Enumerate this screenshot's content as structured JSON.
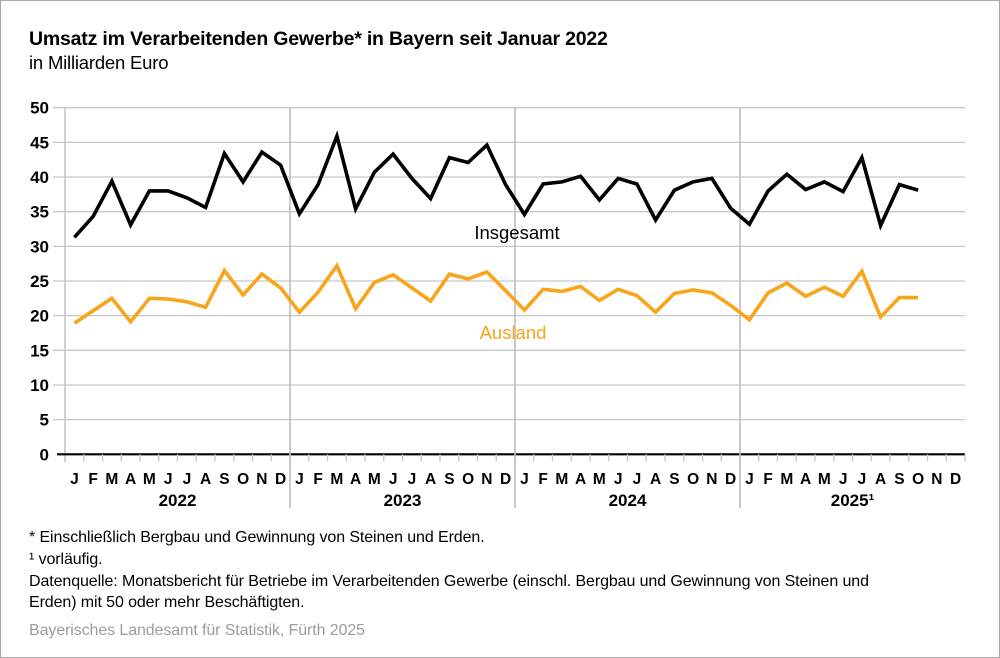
{
  "header": {
    "title": "Umsatz im Verarbeitenden Gewerbe* in Bayern seit Januar 2022",
    "subtitle": "in Milliarden Euro"
  },
  "chart_data": {
    "type": "line",
    "title": "Umsatz im Verarbeitenden Gewerbe in Bayern seit Januar 2022",
    "ylabel": "Milliarden Euro",
    "xlabel": "",
    "grid": true,
    "legend_position": "inline-labels",
    "y_range": [
      0,
      50
    ],
    "y_ticks": [
      0,
      5,
      10,
      15,
      20,
      25,
      30,
      35,
      40,
      45,
      50
    ],
    "x_month_labels": [
      "J",
      "F",
      "M",
      "A",
      "M",
      "J",
      "J",
      "A",
      "S",
      "O",
      "N",
      "D"
    ],
    "years": [
      "2022",
      "2023",
      "2024",
      "2025¹"
    ],
    "months_total": 48,
    "series": [
      {
        "name": "Insgesamt",
        "color": "#000000",
        "values": [
          31.3,
          34.3,
          39.4,
          33.1,
          38.0,
          38.0,
          37.0,
          35.6,
          43.4,
          39.3,
          43.6,
          41.7,
          34.7,
          38.9,
          45.9,
          35.4,
          40.7,
          43.3,
          39.8,
          36.9,
          42.8,
          42.1,
          44.6,
          38.9,
          34.6,
          39.0,
          39.3,
          40.1,
          36.7,
          39.8,
          39.0,
          33.8,
          38.1,
          39.3,
          39.8,
          35.5,
          33.2,
          38.0,
          40.4,
          38.2,
          39.3,
          37.9,
          42.8,
          33.0,
          38.9,
          38.1
        ]
      },
      {
        "name": "Ausland",
        "color": "#F7A61B",
        "values": [
          18.9,
          20.7,
          22.5,
          19.1,
          22.5,
          22.4,
          22.0,
          21.2,
          26.5,
          23.0,
          26.0,
          24.0,
          20.5,
          23.4,
          27.2,
          21.0,
          24.8,
          25.9,
          24.0,
          22.1,
          26.0,
          25.3,
          26.3,
          23.6,
          20.8,
          23.8,
          23.5,
          24.2,
          22.2,
          23.8,
          22.9,
          20.5,
          23.2,
          23.7,
          23.3,
          21.5,
          19.4,
          23.3,
          24.7,
          22.8,
          24.1,
          22.8,
          26.4,
          19.8,
          22.6,
          22.6
        ]
      }
    ]
  },
  "footnotes": {
    "asterisk": "* Einschließlich Bergbau und Gewinnung von Steinen und Erden.",
    "preliminary": "¹ vorläufig.",
    "source_line1": "Datenquelle: Monatsbericht für Betriebe im Verarbeitenden Gewerbe (einschl. Bergbau und Gewinnung von Steinen und",
    "source_line2": "Erden) mit 50 oder mehr Beschäftigten."
  },
  "footer": {
    "credit": "Bayerisches Landesamt für Statistik, Fürth 2025"
  },
  "colors": {
    "insgesamt_line": "#000000",
    "ausland_line": "#F7A61B",
    "gridline": "#c7c7c7",
    "year_separator": "#bdbdbd",
    "axis": "#000000",
    "credit_text": "#9c9c9c"
  }
}
